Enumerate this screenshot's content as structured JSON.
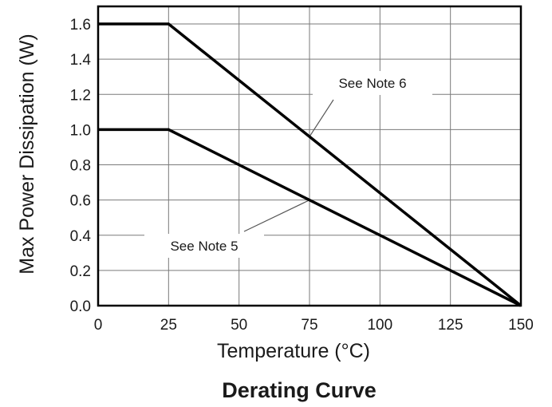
{
  "chart_data": {
    "type": "line",
    "title": "Derating Curve",
    "xlabel": "Temperature (°C)",
    "ylabel": "Max Power Dissipation (W)",
    "xlim": [
      0,
      150
    ],
    "ylim": [
      0,
      1.7
    ],
    "x_ticks": [
      0,
      25,
      50,
      75,
      100,
      125,
      150
    ],
    "x_tick_labels": [
      "0",
      "25",
      "50",
      "75",
      "100",
      "125",
      "150"
    ],
    "y_ticks": [
      0,
      0.2,
      0.4,
      0.6,
      0.8,
      1.0,
      1.2,
      1.4,
      1.6
    ],
    "y_tick_labels": [
      "0.0",
      "0.2",
      "0.4",
      "0.6",
      "0.8",
      "1.0",
      "1.2",
      "1.4",
      "1.6"
    ],
    "grid": true,
    "series": [
      {
        "x": [
          0,
          25,
          150
        ],
        "y": [
          1.6,
          1.6,
          0
        ]
      },
      {
        "x": [
          0,
          25,
          150
        ],
        "y": [
          1.0,
          1.0,
          0
        ]
      }
    ],
    "annotations": [
      {
        "text": "See Note 6",
        "series_index": 0,
        "points_to": [
          75,
          0.96
        ]
      },
      {
        "text": "See Note 5",
        "series_index": 1,
        "points_to": [
          75,
          0.6
        ]
      }
    ]
  }
}
